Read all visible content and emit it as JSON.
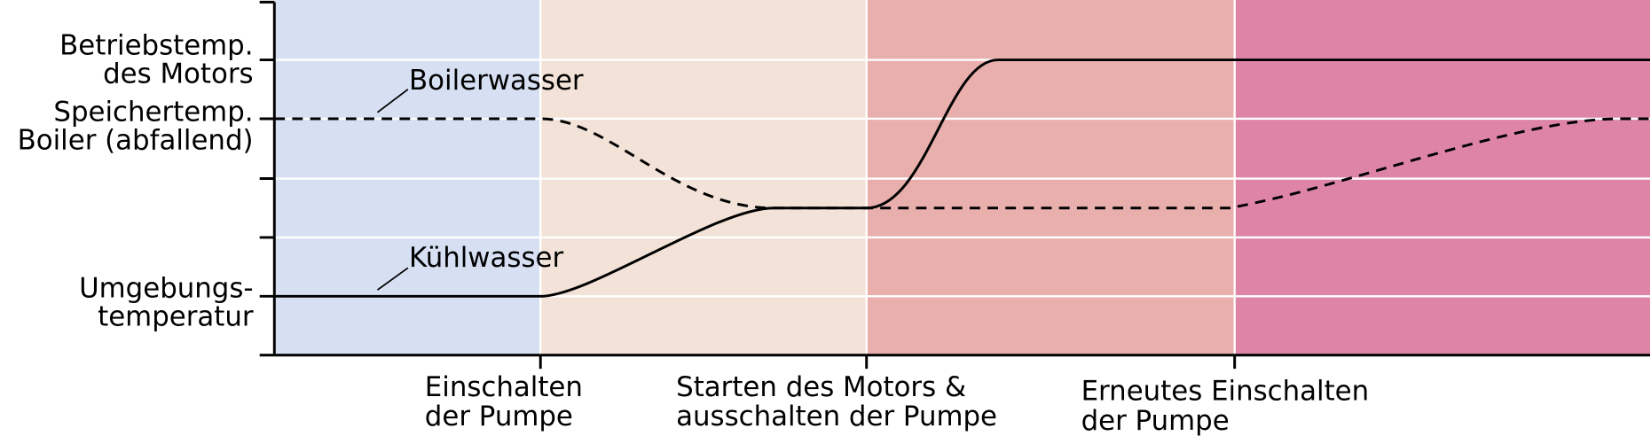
{
  "y_labels": [
    [
      "Betriebstemp.",
      "des Motors"
    ],
    [
      "Speichertemp.",
      "Boiler (abfallend)"
    ],
    [
      "Umgebungs-",
      "temperatur"
    ]
  ],
  "curve_labels": [
    "Boilerwasser",
    "Kühlwasser"
  ],
  "x_labels": [
    [
      "Einschalten",
      "der Pumpe"
    ],
    [
      "Starten des Motors &",
      "ausschalten der Pumpe"
    ],
    [
      "Erneutes Einschalten",
      "der Pumpe"
    ]
  ]
}
